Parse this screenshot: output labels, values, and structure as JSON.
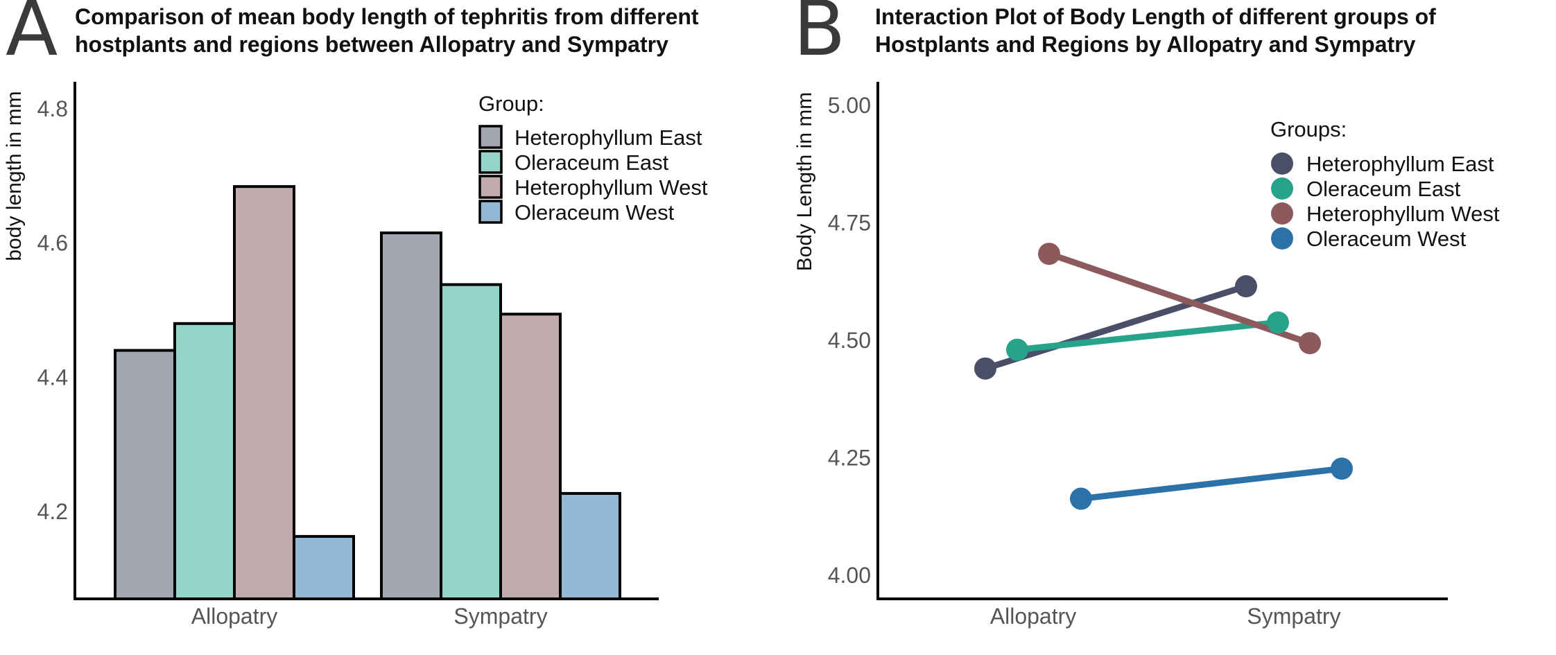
{
  "panel_a": {
    "letter": "A",
    "title": "Comparison of mean body length of tephritis from different\nhostplants and regions between Allopatry and Sympatry"
  },
  "panel_b": {
    "letter": "B",
    "title": "Interaction Plot of Body Length of different groups of\n Hostplants and Regions by Allopatry and Sympatry"
  },
  "chart_data": [
    {
      "type": "bar",
      "title": "Comparison of mean body length of tephritis from different hostplants and regions between Allopatry and Sympatry",
      "xlabel": "",
      "ylabel": "body length in mm",
      "categories": [
        "Allopatry",
        "Sympatry"
      ],
      "yticks": [
        "4.2",
        "4.4",
        "4.6",
        "4.8"
      ],
      "ylim": [
        4.07,
        4.84
      ],
      "legend_title": "Group:",
      "legend_position": "top-right",
      "grid": false,
      "series": [
        {
          "name": "Heterophyllum East",
          "color": "#a3a7b1",
          "values": [
            4.44,
            4.615
          ]
        },
        {
          "name": "Oleraceum East",
          "color": "#95d4c8",
          "values": [
            4.48,
            4.538
          ]
        },
        {
          "name": "Heterophyllum West",
          "color": "#c2abad",
          "values": [
            4.684,
            4.494
          ]
        },
        {
          "name": "Oleraceum West",
          "color": "#94b8d3",
          "values": [
            4.163,
            4.227
          ]
        }
      ]
    },
    {
      "type": "line",
      "title": "Interaction Plot of Body Length of different groups of Hostplants and Regions by Allopatry and Sympatry",
      "xlabel": "",
      "ylabel": "Body Length in mm",
      "categories": [
        "Allopatry",
        "Sympatry"
      ],
      "yticks": [
        "4.00",
        "4.25",
        "4.50",
        "4.75",
        "5.00"
      ],
      "ylim": [
        3.95,
        5.05
      ],
      "legend_title": "Groups:",
      "legend_position": "top-right",
      "grid": false,
      "series": [
        {
          "name": "Heterophyllum East",
          "color": "#4b4e69",
          "values": [
            4.44,
            4.615
          ]
        },
        {
          "name": "Oleraceum East",
          "color": "#26a38a",
          "values": [
            4.48,
            4.538
          ]
        },
        {
          "name": "Heterophyllum West",
          "color": "#8c5a5c",
          "values": [
            4.684,
            4.494
          ]
        },
        {
          "name": "Oleraceum West",
          "color": "#2a72a8",
          "values": [
            4.163,
            4.227
          ]
        }
      ]
    }
  ]
}
